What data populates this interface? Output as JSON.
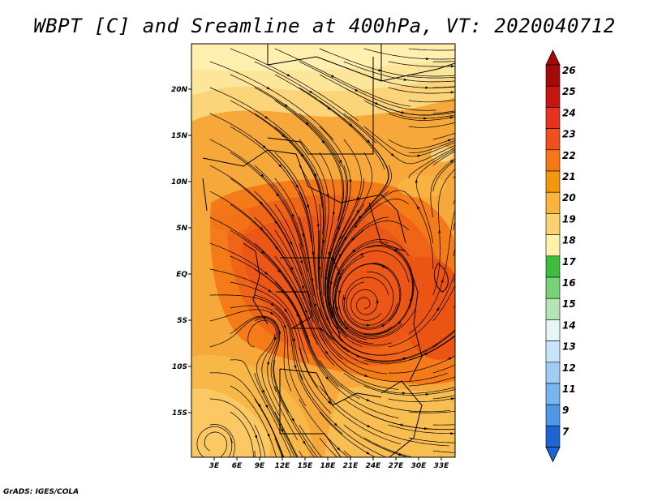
{
  "title": "WBPT [C] and Sreamline at 400hPa, VT: 2020040712",
  "credit": "GrADS: IGES/COLA",
  "map": {
    "lat_labels": [
      "20N",
      "15N",
      "10N",
      "5N",
      "EQ",
      "5S",
      "10S",
      "15S"
    ],
    "lon_labels": [
      "3E",
      "6E",
      "9E",
      "12E",
      "15E",
      "18E",
      "21E",
      "24E",
      "27E",
      "30E",
      "33E"
    ]
  },
  "colorbar": {
    "labels": [
      "26",
      "25",
      "24",
      "23",
      "22",
      "21",
      "20",
      "19",
      "18",
      "17",
      "16",
      "15",
      "14",
      "13",
      "12",
      "11",
      "9",
      "7"
    ],
    "colors": [
      "#a50a0a",
      "#c8140f",
      "#e6321e",
      "#f0501e",
      "#f57814",
      "#f5960f",
      "#fab43c",
      "#fcd26e",
      "#fff0aa",
      "#3cbe3c",
      "#78d278",
      "#b4e6b4",
      "#e6f5f5",
      "#c8e6fa",
      "#a0cdf5",
      "#78b4f0",
      "#5096e6",
      "#1e64d2"
    ]
  }
}
